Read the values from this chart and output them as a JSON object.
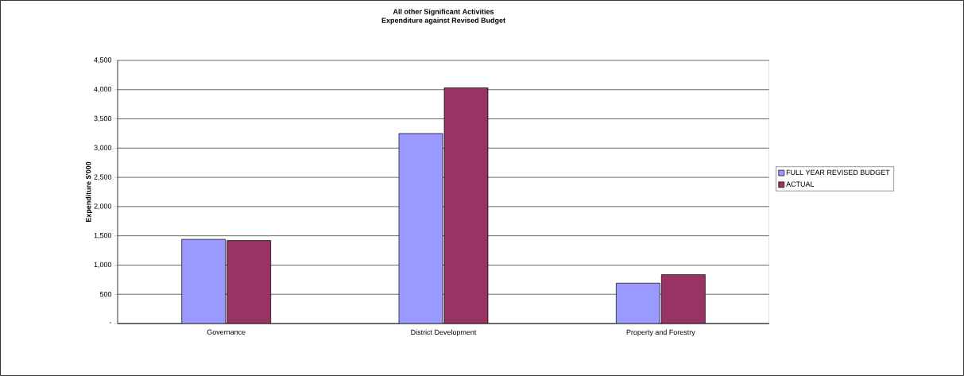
{
  "chart_data": {
    "type": "bar",
    "title": "All other Significant Activities\nExpenditure against Revised Budget",
    "ylabel": "Expenditure $'000",
    "categories": [
      "Governance",
      "District Development",
      "Property and Forestry"
    ],
    "series": [
      {
        "name": "FULL YEAR REVISED BUDGET",
        "color": "#9999ff",
        "values": [
          1440,
          3250,
          690
        ]
      },
      {
        "name": "ACTUAL",
        "color": "#993366",
        "values": [
          1420,
          4030,
          835
        ]
      }
    ],
    "ylim": [
      0,
      4500
    ],
    "yticks": [
      {
        "value": 0,
        "label": "-"
      },
      {
        "value": 500,
        "label": "500"
      },
      {
        "value": 1000,
        "label": "1,000"
      },
      {
        "value": 1500,
        "label": "1,500"
      },
      {
        "value": 2000,
        "label": "2,000"
      },
      {
        "value": 2500,
        "label": "2,500"
      },
      {
        "value": 3000,
        "label": "3,000"
      },
      {
        "value": 3500,
        "label": "3,500"
      },
      {
        "value": 4000,
        "label": "4,000"
      },
      {
        "value": 4500,
        "label": "4,500"
      }
    ],
    "grid": "y",
    "legend": "right"
  }
}
